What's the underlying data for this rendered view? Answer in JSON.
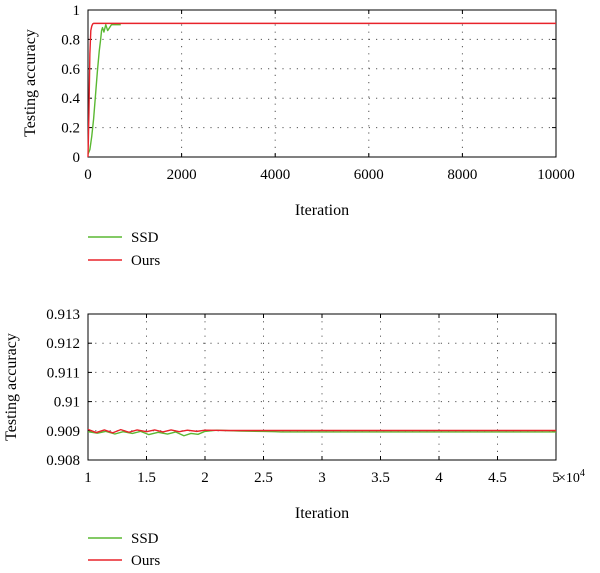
{
  "chart_data": [
    {
      "type": "line",
      "title": "",
      "xlabel": "Iteration",
      "ylabel": "Testing accuracy",
      "xlim": [
        0,
        10000
      ],
      "ylim": [
        0,
        1
      ],
      "x_ticks": [
        0,
        2000,
        4000,
        6000,
        8000,
        10000
      ],
      "x_tick_labels": [
        "0",
        "2000",
        "4000",
        "6000",
        "8000",
        "10000"
      ],
      "y_ticks": [
        0,
        0.2,
        0.4,
        0.6,
        0.8,
        1
      ],
      "y_tick_labels": [
        "0",
        "0.2",
        "0.4",
        "0.6",
        "0.8",
        "1"
      ],
      "grid": true,
      "legend": "below",
      "series": [
        {
          "name": "SSD",
          "color": "#5ab832",
          "x": [
            0,
            40,
            80,
            120,
            160,
            200,
            240,
            270,
            290,
            310,
            340,
            380,
            420,
            500,
            600,
            700
          ],
          "y": [
            0.02,
            0.05,
            0.14,
            0.26,
            0.42,
            0.58,
            0.72,
            0.8,
            0.86,
            0.88,
            0.85,
            0.9,
            0.86,
            0.9,
            0.9,
            0.9
          ]
        },
        {
          "name": "Ours",
          "color": "#e8232b",
          "x": [
            0,
            20,
            40,
            60,
            80,
            100,
            120,
            10000
          ],
          "y": [
            0.0,
            0.3,
            0.7,
            0.86,
            0.89,
            0.905,
            0.909,
            0.909
          ]
        }
      ]
    },
    {
      "type": "line",
      "title": "",
      "xlabel": "Iteration",
      "ylabel": "Testing accuracy",
      "xlim": [
        10000,
        50000
      ],
      "ylim": [
        0.908,
        0.913
      ],
      "x_ticks": [
        10000,
        15000,
        20000,
        25000,
        30000,
        35000,
        40000,
        45000,
        50000
      ],
      "x_tick_labels": [
        "1",
        "1.5",
        "2",
        "2.5",
        "3",
        "3.5",
        "4",
        "4.5",
        "5"
      ],
      "x_multiplier": "×10",
      "x_multiplier_exp": "4",
      "y_ticks": [
        0.908,
        0.909,
        0.91,
        0.911,
        0.912,
        0.913
      ],
      "y_tick_labels": [
        "0.908",
        "0.909",
        "0.91",
        "0.911",
        "0.912",
        "0.913"
      ],
      "grid": true,
      "legend": "below",
      "series": [
        {
          "name": "SSD",
          "color": "#5ab832",
          "x": [
            10000,
            10800,
            11500,
            12300,
            13000,
            13800,
            14500,
            15200,
            16000,
            16800,
            17500,
            18200,
            18800,
            19400,
            20000,
            21000,
            23000,
            25000,
            26000,
            26500,
            28000,
            35000,
            50000
          ],
          "y": [
            0.90897,
            0.90892,
            0.90898,
            0.90889,
            0.90897,
            0.90891,
            0.90898,
            0.90887,
            0.90895,
            0.90889,
            0.90896,
            0.90883,
            0.90891,
            0.90888,
            0.90898,
            0.90902,
            0.90899,
            0.90898,
            0.90897,
            0.90896,
            0.90896,
            0.90896,
            0.90896
          ]
        },
        {
          "name": "Ours",
          "color": "#e8232b",
          "x": [
            10000,
            10700,
            11400,
            12100,
            12800,
            13500,
            14200,
            15000,
            15700,
            16400,
            17100,
            17800,
            18500,
            19300,
            20000,
            22000,
            30000,
            40000,
            50000
          ],
          "y": [
            0.90905,
            0.90894,
            0.90903,
            0.90893,
            0.90904,
            0.90895,
            0.90903,
            0.90897,
            0.90903,
            0.90896,
            0.90903,
            0.90897,
            0.90902,
            0.90898,
            0.90902,
            0.90901,
            0.90901,
            0.90901,
            0.90901
          ]
        }
      ]
    }
  ]
}
